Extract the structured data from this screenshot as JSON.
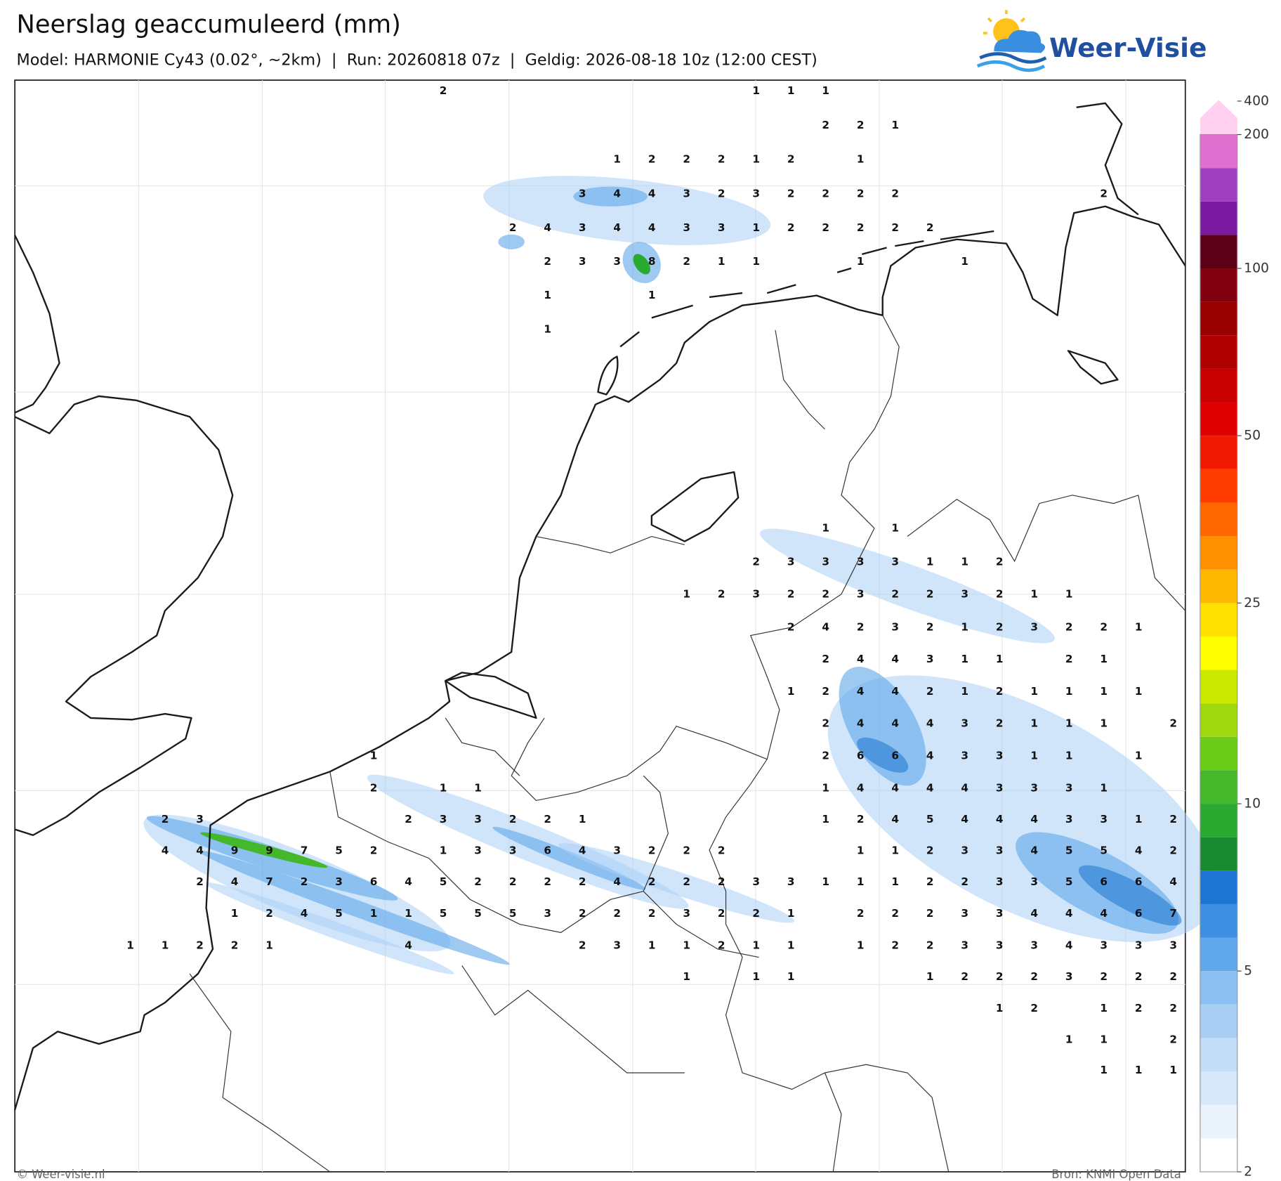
{
  "header": {
    "title": "Neerslag geaccumuleerd (mm)",
    "subtitle": "Model: HARMONIE Cy43 (0.02°, ~2km)  |  Run: 20260818 07z  |  Geldig: 2026-08-18 10z (12:00 CEST)"
  },
  "logo": "Weer-Visie",
  "map": {
    "values": [
      [
        null,
        null,
        null,
        null,
        null,
        null,
        null,
        null,
        null,
        2,
        null,
        null,
        null,
        null,
        null,
        null,
        null,
        null,
        1,
        1,
        1,
        null,
        null,
        null,
        null,
        null,
        null,
        null,
        null,
        null,
        null
      ],
      [
        null,
        null,
        null,
        null,
        null,
        null,
        null,
        null,
        null,
        null,
        null,
        null,
        null,
        null,
        null,
        null,
        null,
        null,
        null,
        null,
        2,
        2,
        1,
        null,
        null,
        null,
        null,
        null,
        null,
        null,
        null
      ],
      [
        null,
        null,
        null,
        null,
        null,
        null,
        null,
        null,
        null,
        null,
        null,
        null,
        null,
        null,
        1,
        2,
        2,
        2,
        1,
        2,
        null,
        1,
        null,
        null,
        null,
        null,
        null,
        null,
        null,
        null,
        null
      ],
      [
        null,
        null,
        null,
        null,
        null,
        null,
        null,
        null,
        null,
        null,
        null,
        null,
        null,
        3,
        4,
        4,
        3,
        2,
        3,
        2,
        2,
        2,
        2,
        null,
        null,
        null,
        null,
        null,
        2,
        null,
        null
      ],
      [
        null,
        null,
        null,
        null,
        null,
        null,
        null,
        null,
        null,
        null,
        null,
        2,
        4,
        3,
        4,
        4,
        3,
        3,
        1,
        2,
        2,
        2,
        2,
        2,
        null,
        null,
        null,
        null,
        null,
        null,
        null
      ],
      [
        null,
        null,
        null,
        null,
        null,
        null,
        null,
        null,
        null,
        null,
        null,
        null,
        2,
        3,
        3,
        8,
        2,
        1,
        1,
        null,
        null,
        1,
        null,
        null,
        1,
        null,
        null,
        null,
        null,
        null,
        null
      ],
      [
        null,
        null,
        null,
        null,
        null,
        null,
        null,
        null,
        null,
        null,
        null,
        null,
        1,
        null,
        null,
        1,
        null,
        null,
        null,
        null,
        null,
        null,
        null,
        null,
        null,
        null,
        null,
        null,
        null,
        null,
        null
      ],
      [
        null,
        null,
        null,
        null,
        null,
        null,
        null,
        null,
        null,
        null,
        null,
        null,
        1,
        null,
        null,
        null,
        null,
        null,
        null,
        null,
        null,
        null,
        null,
        null,
        null,
        null,
        null,
        null,
        null,
        null,
        null
      ],
      [
        null,
        null,
        null,
        null,
        null,
        null,
        null,
        null,
        null,
        null,
        null,
        null,
        null,
        null,
        null,
        null,
        null,
        null,
        null,
        null,
        1,
        null,
        1,
        null,
        null,
        null,
        null,
        null,
        null,
        null,
        null
      ],
      [
        null,
        null,
        null,
        null,
        null,
        null,
        null,
        null,
        null,
        null,
        null,
        null,
        null,
        null,
        null,
        null,
        null,
        null,
        2,
        3,
        3,
        3,
        3,
        1,
        1,
        2,
        null,
        null,
        null,
        null,
        null
      ],
      [
        null,
        null,
        null,
        null,
        null,
        null,
        null,
        null,
        null,
        null,
        null,
        null,
        null,
        null,
        null,
        null,
        1,
        2,
        3,
        2,
        2,
        3,
        2,
        2,
        3,
        2,
        1,
        1,
        null,
        null,
        null
      ],
      [
        null,
        null,
        null,
        null,
        null,
        null,
        null,
        null,
        null,
        null,
        null,
        null,
        null,
        null,
        null,
        null,
        null,
        null,
        null,
        2,
        4,
        2,
        3,
        2,
        1,
        2,
        3,
        2,
        2,
        1,
        null
      ],
      [
        null,
        null,
        null,
        null,
        null,
        null,
        null,
        null,
        null,
        null,
        null,
        null,
        null,
        null,
        null,
        null,
        null,
        null,
        null,
        null,
        2,
        4,
        4,
        3,
        1,
        1,
        null,
        2,
        1,
        null,
        null
      ],
      [
        null,
        null,
        null,
        null,
        null,
        null,
        null,
        null,
        null,
        null,
        null,
        null,
        null,
        null,
        null,
        null,
        null,
        null,
        null,
        1,
        2,
        4,
        4,
        2,
        1,
        2,
        1,
        1,
        1,
        1,
        null
      ],
      [
        null,
        null,
        null,
        null,
        null,
        null,
        null,
        null,
        null,
        null,
        null,
        null,
        null,
        null,
        null,
        null,
        null,
        null,
        null,
        null,
        2,
        4,
        4,
        4,
        3,
        2,
        1,
        1,
        1,
        null,
        2
      ],
      [
        null,
        null,
        null,
        null,
        null,
        null,
        null,
        1,
        null,
        null,
        null,
        null,
        null,
        null,
        null,
        null,
        null,
        null,
        null,
        null,
        2,
        6,
        6,
        4,
        3,
        3,
        1,
        1,
        null,
        1,
        null
      ],
      [
        null,
        null,
        null,
        null,
        null,
        null,
        null,
        2,
        null,
        1,
        1,
        null,
        null,
        null,
        null,
        null,
        null,
        null,
        null,
        null,
        1,
        4,
        4,
        4,
        4,
        3,
        3,
        3,
        1,
        null,
        null
      ],
      [
        null,
        2,
        3,
        null,
        null,
        null,
        null,
        null,
        2,
        3,
        3,
        2,
        2,
        1,
        null,
        null,
        null,
        null,
        null,
        null,
        1,
        2,
        4,
        5,
        4,
        4,
        4,
        3,
        3,
        1,
        2
      ],
      [
        null,
        4,
        4,
        9,
        9,
        7,
        5,
        2,
        null,
        1,
        3,
        3,
        6,
        4,
        3,
        2,
        2,
        2,
        null,
        null,
        null,
        1,
        1,
        2,
        3,
        3,
        4,
        5,
        5,
        4,
        2
      ],
      [
        null,
        null,
        2,
        4,
        7,
        2,
        3,
        6,
        4,
        5,
        2,
        2,
        2,
        2,
        4,
        2,
        2,
        2,
        3,
        3,
        1,
        1,
        1,
        2,
        2,
        3,
        3,
        5,
        6,
        6,
        4
      ],
      [
        null,
        null,
        null,
        1,
        2,
        4,
        5,
        1,
        1,
        5,
        5,
        5,
        3,
        2,
        2,
        2,
        3,
        2,
        2,
        1,
        null,
        2,
        2,
        2,
        3,
        3,
        4,
        4,
        4,
        6,
        7
      ],
      [
        1,
        1,
        2,
        2,
        1,
        null,
        null,
        null,
        4,
        null,
        null,
        null,
        null,
        2,
        3,
        1,
        1,
        2,
        1,
        1,
        null,
        1,
        2,
        2,
        3,
        3,
        3,
        4,
        3,
        3,
        3
      ],
      [
        null,
        null,
        null,
        null,
        null,
        null,
        null,
        null,
        null,
        null,
        null,
        null,
        null,
        null,
        null,
        null,
        1,
        null,
        1,
        1,
        null,
        null,
        null,
        1,
        2,
        2,
        2,
        3,
        2,
        2,
        2
      ],
      [
        null,
        null,
        null,
        null,
        null,
        null,
        null,
        null,
        null,
        null,
        null,
        null,
        null,
        null,
        null,
        null,
        null,
        null,
        null,
        null,
        null,
        null,
        null,
        null,
        null,
        1,
        2,
        null,
        1,
        2,
        2
      ],
      [
        null,
        null,
        null,
        null,
        null,
        null,
        null,
        null,
        null,
        null,
        null,
        null,
        null,
        null,
        null,
        null,
        null,
        null,
        null,
        null,
        null,
        null,
        null,
        null,
        null,
        null,
        null,
        1,
        1,
        null,
        2
      ],
      [
        null,
        null,
        null,
        null,
        null,
        null,
        null,
        null,
        null,
        null,
        null,
        null,
        null,
        null,
        null,
        null,
        null,
        null,
        null,
        null,
        null,
        null,
        null,
        null,
        null,
        null,
        null,
        null,
        1,
        1,
        1
      ]
    ]
  },
  "colorbar": {
    "colors": [
      "#ffffff",
      "#eaf3fc",
      "#d6e8fa",
      "#c2ddf8",
      "#a9cff5",
      "#8cbff2",
      "#62a8ec",
      "#3d8fe2",
      "#1e74d2",
      "#1a8a30",
      "#2aa830",
      "#44b82a",
      "#6ccc1a",
      "#a0d810",
      "#ccea00",
      "#ffff00",
      "#ffe000",
      "#ffb800",
      "#ff9000",
      "#ff6800",
      "#ff3c00",
      "#f01800",
      "#e00000",
      "#c80000",
      "#b00000",
      "#980000",
      "#800010",
      "#5c0018",
      "#7a1aa0",
      "#a040c0",
      "#e070d0",
      "#ffd0f0"
    ],
    "ticks": [
      2,
      5,
      10,
      25,
      50,
      100,
      200,
      400
    ]
  },
  "footer": {
    "copyright": "© Weer-visie.nl",
    "source": "Bron: KNMI Open Data"
  }
}
